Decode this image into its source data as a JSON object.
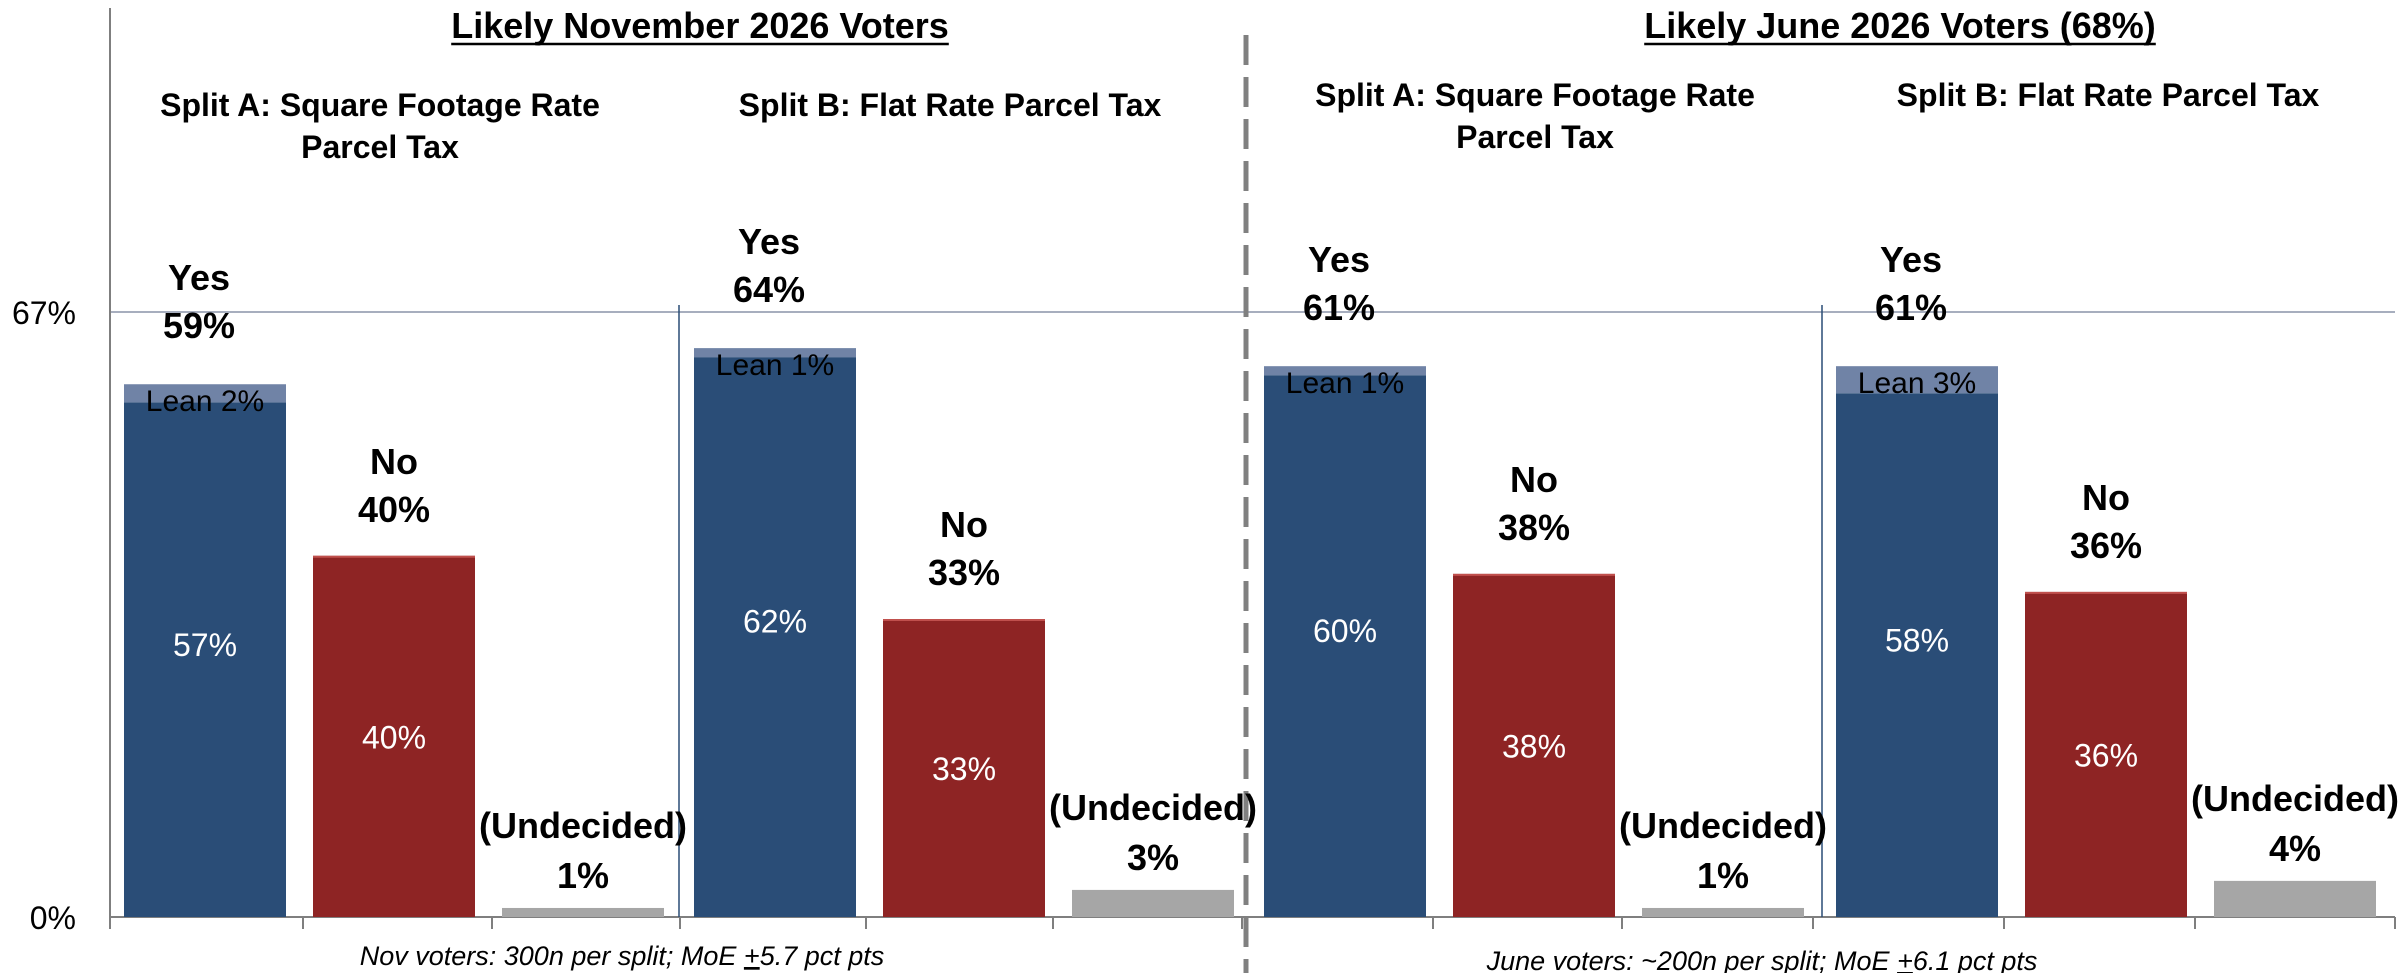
{
  "chart_data": {
    "type": "bar",
    "y_axis": {
      "ticks": [
        "67%",
        "0%"
      ],
      "ylim": [
        0,
        67
      ],
      "grid_at": [
        67
      ]
    },
    "colors": {
      "yes": "#2a4d77",
      "lean": "#7083a6",
      "no": "#8e2424",
      "undecided": "#a6a6a6",
      "axis": "#7f7f7f"
    },
    "panels": [
      {
        "title": "Likely November 2026 Voters",
        "footnote": {
          "pre": "Nov voters: 300n per split; MoE ",
          "pm": "+",
          "post": "5.7 pct pts"
        },
        "splits": [
          {
            "label": [
              "Split A: Square Footage Rate",
              "Parcel Tax"
            ],
            "yes": {
              "label": "Yes",
              "total_label": "59%",
              "firm": 57,
              "lean": 2,
              "firm_label": "57%",
              "lean_label": "Lean 2%"
            },
            "no": {
              "label": "No",
              "total_label": "40%",
              "value": 40,
              "inner_label": "40%"
            },
            "undecided": {
              "label": "(Undecided)",
              "value_label": "1%",
              "value": 1
            }
          },
          {
            "label": [
              "Split B: Flat Rate Parcel Tax"
            ],
            "yes": {
              "label": "Yes",
              "total_label": "64%",
              "firm": 62,
              "lean": 1,
              "firm_label": "62%",
              "lean_label": "Lean 1%"
            },
            "no": {
              "label": "No",
              "total_label": "33%",
              "value": 33,
              "inner_label": "33%"
            },
            "undecided": {
              "label": "(Undecided)",
              "value_label": "3%",
              "value": 3
            }
          }
        ]
      },
      {
        "title": "Likely June 2026 Voters (68%)",
        "footnote": {
          "pre": "June voters: ~200n per split; MoE ",
          "pm": "+",
          "post": "6.1 pct pts"
        },
        "splits": [
          {
            "label": [
              "Split A: Square Footage Rate",
              "Parcel Tax"
            ],
            "yes": {
              "label": "Yes",
              "total_label": "61%",
              "firm": 60,
              "lean": 1,
              "firm_label": "60%",
              "lean_label": "Lean 1%"
            },
            "no": {
              "label": "No",
              "total_label": "38%",
              "value": 38,
              "inner_label": "38%"
            },
            "undecided": {
              "label": "(Undecided)",
              "value_label": "1%",
              "value": 1
            }
          },
          {
            "label": [
              "Split B: Flat Rate Parcel Tax"
            ],
            "yes": {
              "label": "Yes",
              "total_label": "61%",
              "firm": 58,
              "lean": 3,
              "firm_label": "58%",
              "lean_label": "Lean 3%"
            },
            "no": {
              "label": "No",
              "total_label": "36%",
              "value": 36,
              "inner_label": "36%"
            },
            "undecided": {
              "label": "(Undecided)",
              "value_label": "4%",
              "value": 4
            }
          }
        ]
      }
    ]
  }
}
